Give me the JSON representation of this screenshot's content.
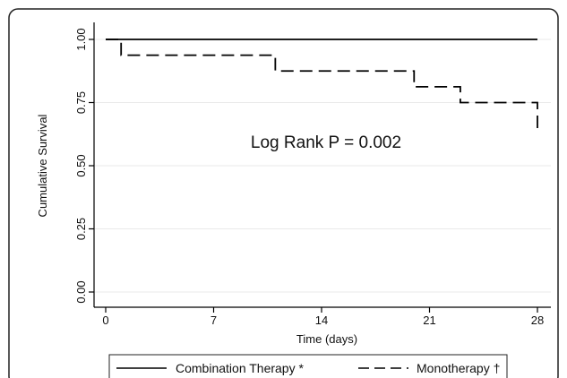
{
  "chart_data": {
    "type": "line",
    "title": "",
    "xlabel": "Time (days)",
    "ylabel": "Cumulative Survival",
    "xlim": [
      0,
      28
    ],
    "ylim": [
      0,
      1
    ],
    "x_ticks": [
      0,
      7,
      14,
      21,
      28
    ],
    "x_tick_labels": [
      "0",
      "7",
      "14",
      "21",
      "28"
    ],
    "y_ticks": [
      0,
      0.25,
      0.5,
      0.75,
      1.0
    ],
    "y_tick_labels": [
      "0.00",
      "0.25",
      "0.50",
      "0.75",
      "1.00"
    ],
    "grid": "horizontal",
    "annotation": "Log Rank P = 0.002",
    "legend_position": "bottom",
    "series": [
      {
        "name": "Combination Therapy *",
        "style": "solid",
        "color": "#000000",
        "step_x": [
          0,
          28
        ],
        "step_y": [
          1.0,
          1.0
        ]
      },
      {
        "name": "Monotherapy †",
        "style": "dashed",
        "color": "#000000",
        "step_x": [
          0,
          1,
          11,
          20,
          23,
          28
        ],
        "step_y": [
          1.0,
          0.9375,
          0.875,
          0.8125,
          0.75,
          0.625
        ]
      }
    ]
  }
}
